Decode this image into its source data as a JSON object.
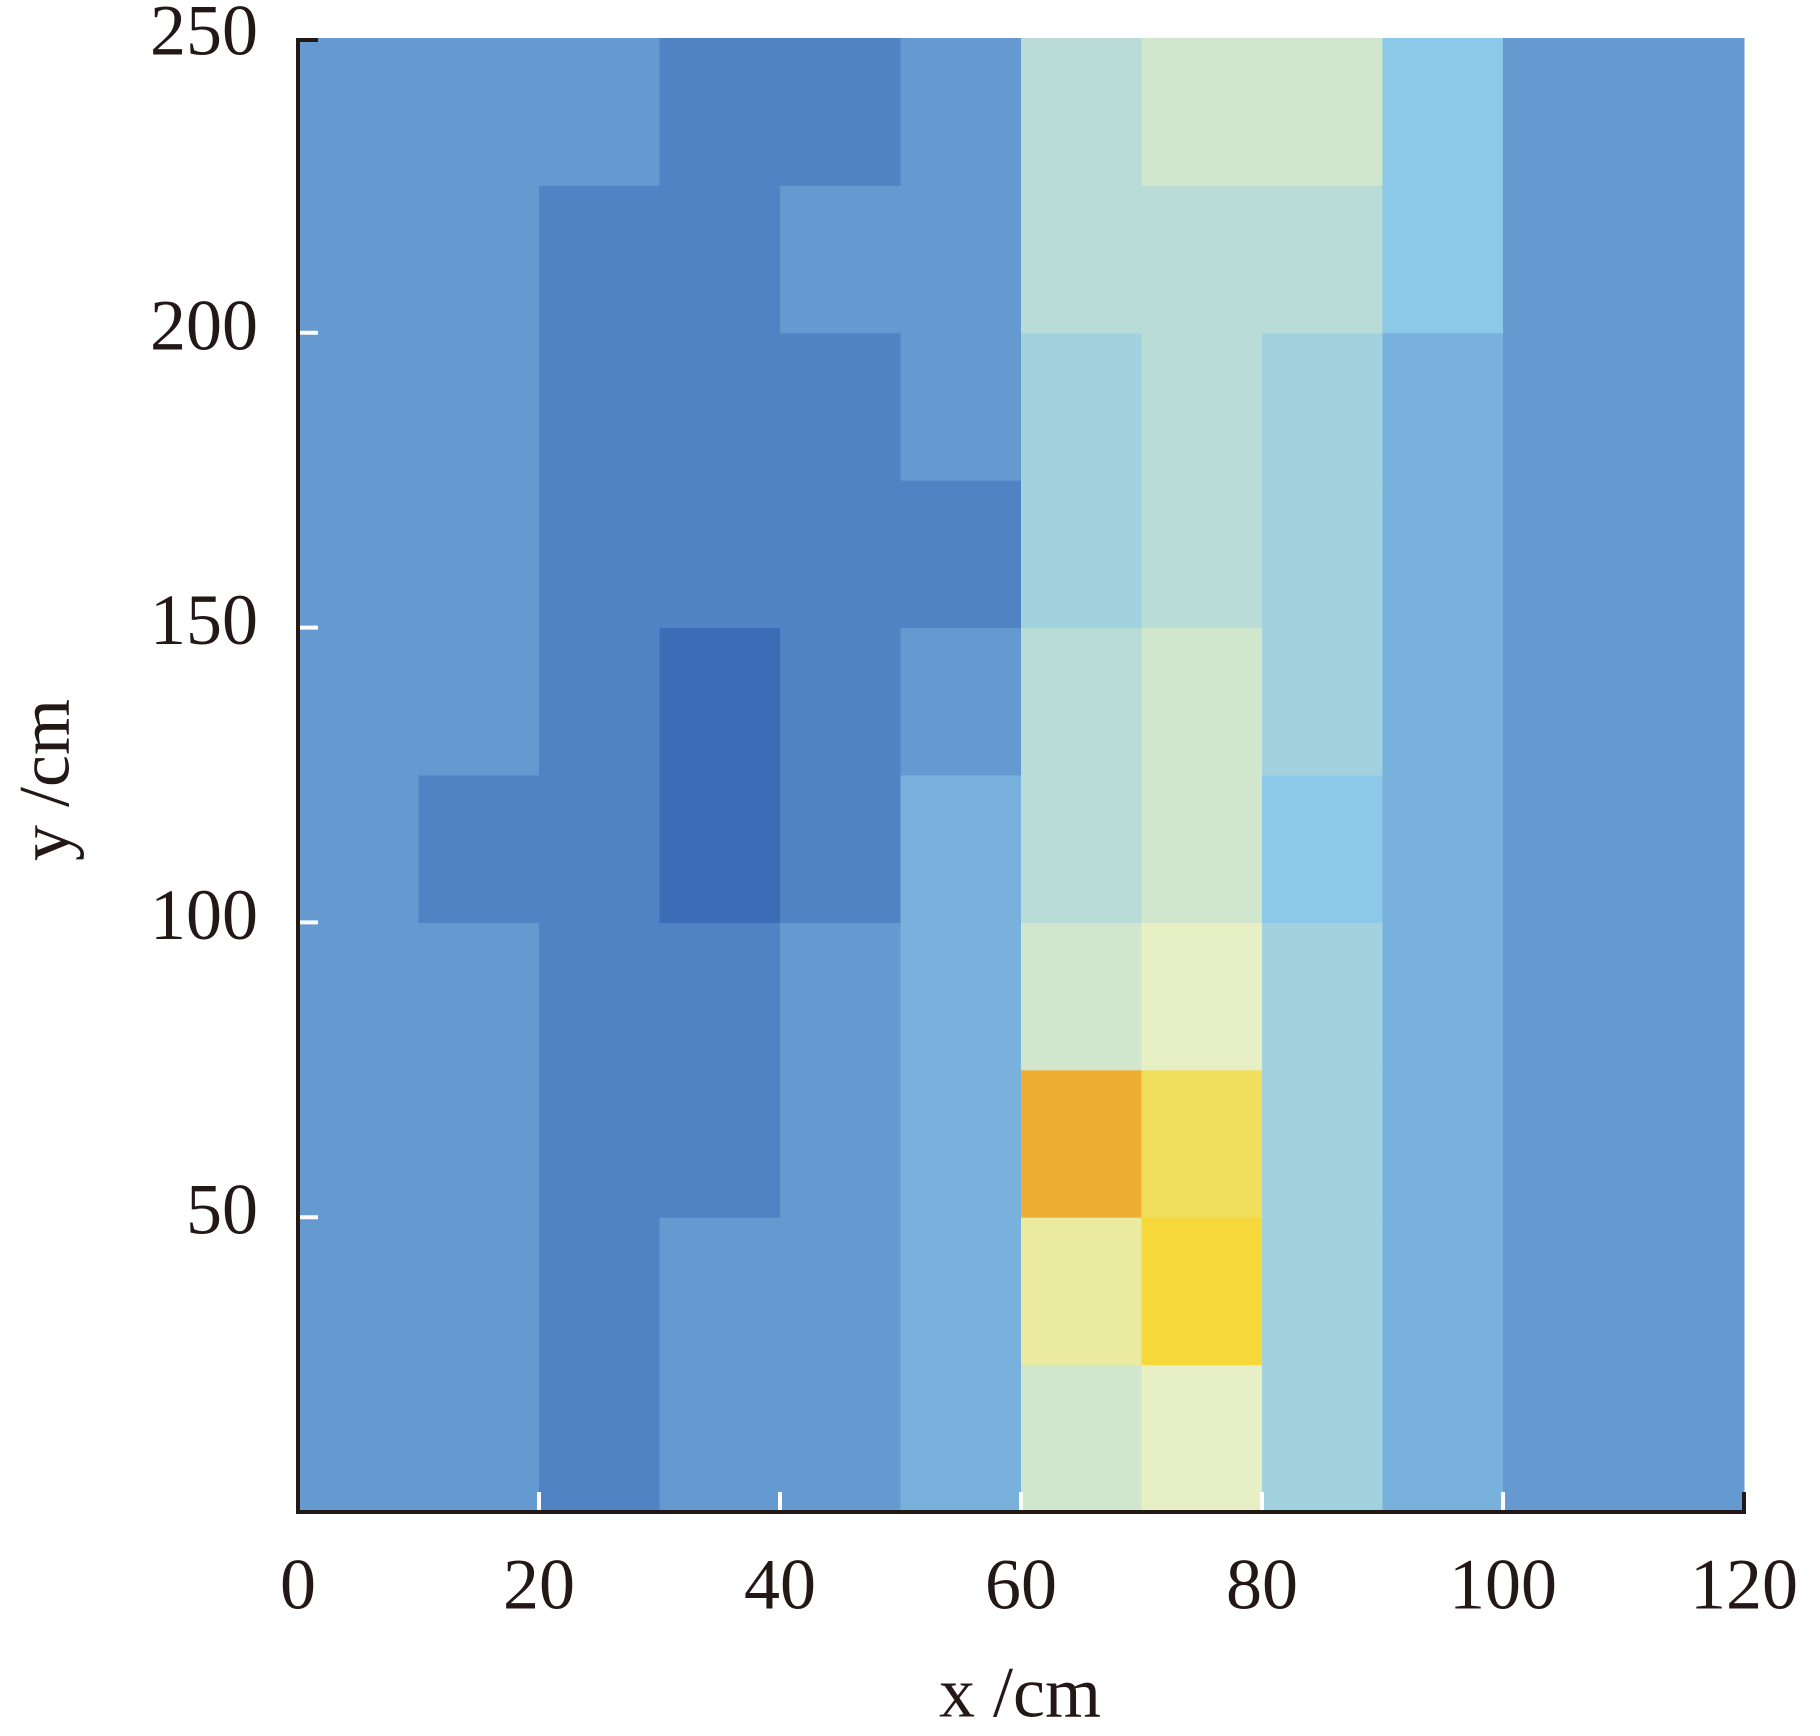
{
  "chart_data": {
    "type": "heatmap",
    "xlabel": "x /cm",
    "ylabel": "y /cm",
    "xbins": [
      0,
      10,
      20,
      30,
      40,
      50,
      60,
      70,
      80,
      90,
      100,
      110,
      120
    ],
    "ybins": [
      0,
      25,
      50,
      75,
      100,
      125,
      150,
      175,
      200,
      225,
      250
    ],
    "values": [
      [
        0.3,
        0.3,
        0.25,
        0.3,
        0.3,
        0.35,
        0.55,
        0.6,
        0.45,
        0.35,
        0.3,
        0.3
      ],
      [
        0.3,
        0.3,
        0.25,
        0.3,
        0.3,
        0.35,
        0.65,
        0.8,
        0.45,
        0.35,
        0.3,
        0.3
      ],
      [
        0.3,
        0.3,
        0.25,
        0.25,
        0.3,
        0.35,
        0.85,
        0.75,
        0.45,
        0.35,
        0.3,
        0.3
      ],
      [
        0.3,
        0.3,
        0.25,
        0.25,
        0.3,
        0.35,
        0.55,
        0.6,
        0.45,
        0.35,
        0.3,
        0.3
      ],
      [
        0.3,
        0.25,
        0.25,
        0.2,
        0.25,
        0.35,
        0.5,
        0.55,
        0.4,
        0.35,
        0.3,
        0.3
      ],
      [
        0.3,
        0.3,
        0.25,
        0.2,
        0.25,
        0.3,
        0.5,
        0.55,
        0.45,
        0.35,
        0.3,
        0.3
      ],
      [
        0.3,
        0.3,
        0.25,
        0.25,
        0.25,
        0.25,
        0.45,
        0.5,
        0.45,
        0.35,
        0.3,
        0.3
      ],
      [
        0.3,
        0.3,
        0.25,
        0.25,
        0.25,
        0.3,
        0.45,
        0.5,
        0.45,
        0.35,
        0.3,
        0.3
      ],
      [
        0.3,
        0.3,
        0.25,
        0.25,
        0.3,
        0.3,
        0.5,
        0.5,
        0.5,
        0.4,
        0.3,
        0.3
      ],
      [
        0.3,
        0.3,
        0.3,
        0.25,
        0.25,
        0.3,
        0.5,
        0.55,
        0.55,
        0.4,
        0.3,
        0.3
      ]
    ],
    "colormap": [
      "#2b3488",
      "#3c6cb6",
      "#8cc8e8",
      "#e6f0c4",
      "#f6d83a",
      "#d42a1e"
    ],
    "xlim": [
      0,
      120
    ],
    "xticks": [
      0,
      20,
      40,
      60,
      80,
      100,
      120
    ],
    "ylim": [
      0,
      250
    ],
    "yticks": [
      50,
      100,
      150,
      200,
      250
    ]
  }
}
